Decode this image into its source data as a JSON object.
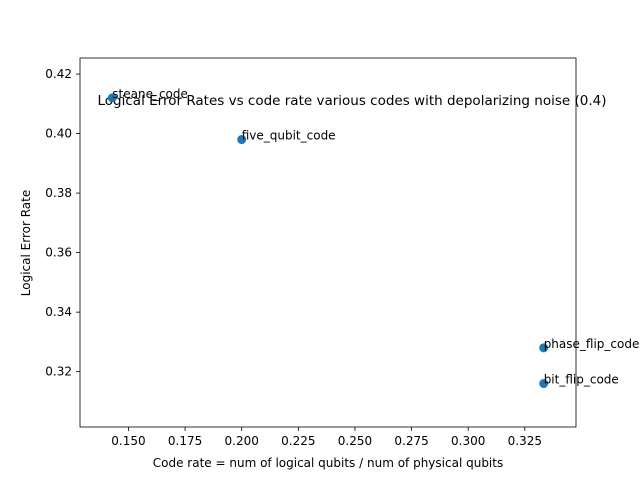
{
  "chart_data": {
    "type": "scatter",
    "title": "Logical Error Rates vs code rate various codes with depolarizing noise (0.4)",
    "xlabel": "Code rate = num of logical qubits / num of physical qubits",
    "ylabel": "Logical Error Rate",
    "xlim": [
      0.1286,
      0.3476
    ],
    "ylim": [
      0.3014,
      0.4254
    ],
    "xticks": [
      "0.150",
      "0.175",
      "0.200",
      "0.225",
      "0.250",
      "0.275",
      "0.300",
      "0.325"
    ],
    "yticks": [
      "0.32",
      "0.34",
      "0.36",
      "0.38",
      "0.40",
      "0.42"
    ],
    "grid": false,
    "marker_color": "#1f77b4",
    "points": [
      {
        "label": "steane_code",
        "x": 0.142857,
        "y": 0.412
      },
      {
        "label": "five_qubit_code",
        "x": 0.2,
        "y": 0.398
      },
      {
        "label": "phase_flip_code",
        "x": 0.333333,
        "y": 0.328
      },
      {
        "label": "bit_flip_code",
        "x": 0.333333,
        "y": 0.316
      }
    ]
  }
}
